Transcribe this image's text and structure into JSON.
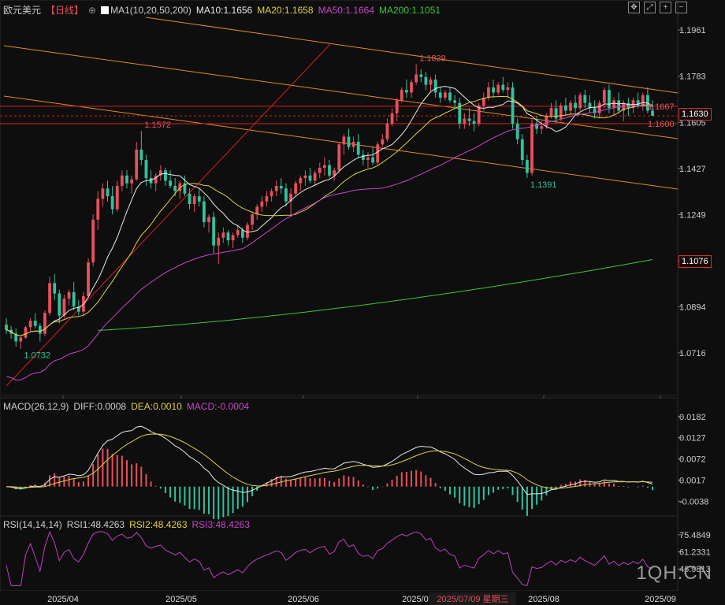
{
  "header": {
    "symbol": "欧元美元",
    "period": "【日线】",
    "ma_label": "MA1(10,20,50,200)",
    "ma10": "MA10:1.1656",
    "ma20": "MA20:1.1658",
    "ma50": "MA50:1.1664",
    "ma200": "MA200:1.1051"
  },
  "macd_header": {
    "label": "MACD(26,12,9)",
    "diff": "DIFF:0.0008",
    "dea": "DEA:0.0010",
    "macd": "MACD:-0.0004"
  },
  "rsi_header": {
    "label": "RSI(14,14,14)",
    "rsi1": "RSI1:48.4263",
    "rsi2": "RSI2:48.4263",
    "rsi3": "RSI3:48.4263"
  },
  "watermark": "1QH.CN",
  "crosshair_date": "2025/07/09 星期三",
  "current_price": "1.1630",
  "ma200_tag": "1.1076",
  "colors": {
    "up": "#e8505b",
    "down": "#2ec4a0",
    "ma10": "#e8e8e8",
    "ma20": "#e0d040",
    "ma50": "#cc44cc",
    "ma200": "#3cc43c",
    "trend": "#e08a20",
    "redline": "#d42020",
    "rsi": "#c040c0"
  },
  "chart_data": [
    {
      "type": "candlestick",
      "title": "欧元美元 日线",
      "x_ticks": [
        "2025/04",
        "2025/05",
        "2025/06",
        "2025/07",
        "2025/08",
        "2025/09"
      ],
      "y_ticks": [
        "1.1961",
        "1.1783",
        "1.1605",
        "1.1427",
        "1.1249",
        "1.1071",
        "1.0894",
        "1.0716"
      ],
      "ylim": [
        1.057,
        1.201
      ],
      "annotations": [
        {
          "label": "1.0732",
          "value": 1.0732
        },
        {
          "label": "1.1572",
          "value": 1.1572
        },
        {
          "label": "1.1829",
          "value": 1.1829
        },
        {
          "label": "1.1391",
          "value": 1.1391
        },
        {
          "label": "1.1667",
          "value": 1.1667
        },
        {
          "label": "1.1600",
          "value": 1.16
        }
      ],
      "ohlc": [
        [
          1.0825,
          1.085,
          1.079,
          1.0805
        ],
        [
          1.0805,
          1.082,
          1.077,
          1.079
        ],
        [
          1.079,
          1.081,
          1.074,
          1.076
        ],
        [
          1.076,
          1.078,
          1.0732,
          1.0775
        ],
        [
          1.0775,
          1.082,
          1.077,
          1.0815
        ],
        [
          1.0815,
          1.085,
          1.08,
          1.084
        ],
        [
          1.084,
          1.087,
          1.081,
          1.082
        ],
        [
          1.082,
          1.083,
          1.076,
          1.079
        ],
        [
          1.079,
          1.088,
          1.078,
          1.087
        ],
        [
          1.087,
          1.101,
          1.086,
          1.0985
        ],
        [
          1.0985,
          1.102,
          1.092,
          1.0945
        ],
        [
          1.0945,
          1.096,
          1.083,
          1.086
        ],
        [
          1.086,
          1.094,
          1.085,
          1.0925
        ],
        [
          1.0925,
          1.096,
          1.09,
          1.095
        ],
        [
          1.095,
          1.099,
          1.088,
          1.0895
        ],
        [
          1.0895,
          1.092,
          1.086,
          1.0875
        ],
        [
          1.0875,
          1.095,
          1.086,
          1.0935
        ],
        [
          1.0935,
          1.108,
          1.093,
          1.1065
        ],
        [
          1.1065,
          1.125,
          1.105,
          1.123
        ],
        [
          1.123,
          1.134,
          1.119,
          1.131
        ],
        [
          1.131,
          1.137,
          1.128,
          1.135
        ],
        [
          1.135,
          1.138,
          1.13,
          1.132
        ],
        [
          1.132,
          1.136,
          1.125,
          1.127
        ],
        [
          1.127,
          1.138,
          1.126,
          1.136
        ],
        [
          1.136,
          1.142,
          1.134,
          1.14
        ],
        [
          1.14,
          1.142,
          1.135,
          1.137
        ],
        [
          1.137,
          1.14,
          1.133,
          1.1385
        ],
        [
          1.1385,
          1.153,
          1.138,
          1.15
        ],
        [
          1.15,
          1.1572,
          1.144,
          1.146
        ],
        [
          1.146,
          1.148,
          1.136,
          1.139
        ],
        [
          1.139,
          1.142,
          1.135,
          1.137
        ],
        [
          1.137,
          1.141,
          1.134,
          1.14
        ],
        [
          1.14,
          1.144,
          1.138,
          1.142
        ],
        [
          1.142,
          1.143,
          1.136,
          1.138
        ],
        [
          1.138,
          1.142,
          1.135,
          1.136
        ],
        [
          1.136,
          1.139,
          1.132,
          1.134
        ],
        [
          1.134,
          1.138,
          1.131,
          1.137
        ],
        [
          1.137,
          1.14,
          1.132,
          1.133
        ],
        [
          1.133,
          1.135,
          1.127,
          1.129
        ],
        [
          1.129,
          1.133,
          1.126,
          1.132
        ],
        [
          1.132,
          1.135,
          1.128,
          1.13
        ],
        [
          1.13,
          1.132,
          1.12,
          1.122
        ],
        [
          1.122,
          1.125,
          1.118,
          1.124
        ],
        [
          1.124,
          1.126,
          1.11,
          1.113
        ],
        [
          1.113,
          1.118,
          1.106,
          1.116
        ],
        [
          1.116,
          1.12,
          1.114,
          1.118
        ],
        [
          1.118,
          1.119,
          1.113,
          1.115
        ],
        [
          1.115,
          1.118,
          1.112,
          1.117
        ],
        [
          1.117,
          1.121,
          1.116,
          1.119
        ],
        [
          1.119,
          1.12,
          1.114,
          1.116
        ],
        [
          1.116,
          1.122,
          1.115,
          1.121
        ],
        [
          1.121,
          1.126,
          1.119,
          1.125
        ],
        [
          1.125,
          1.129,
          1.123,
          1.128
        ],
        [
          1.128,
          1.132,
          1.126,
          1.13
        ],
        [
          1.13,
          1.134,
          1.128,
          1.132
        ],
        [
          1.132,
          1.135,
          1.13,
          1.134
        ],
        [
          1.134,
          1.138,
          1.132,
          1.136
        ],
        [
          1.136,
          1.139,
          1.133,
          1.135
        ],
        [
          1.135,
          1.137,
          1.128,
          1.13
        ],
        [
          1.13,
          1.135,
          1.124,
          1.133
        ],
        [
          1.133,
          1.138,
          1.132,
          1.137
        ],
        [
          1.137,
          1.14,
          1.134,
          1.139
        ],
        [
          1.139,
          1.142,
          1.136,
          1.14
        ],
        [
          1.14,
          1.143,
          1.137,
          1.138
        ],
        [
          1.138,
          1.142,
          1.136,
          1.141
        ],
        [
          1.141,
          1.145,
          1.139,
          1.143
        ],
        [
          1.143,
          1.147,
          1.14,
          1.144
        ],
        [
          1.144,
          1.146,
          1.139,
          1.14
        ],
        [
          1.14,
          1.143,
          1.138,
          1.142
        ],
        [
          1.142,
          1.153,
          1.141,
          1.152
        ],
        [
          1.152,
          1.156,
          1.148,
          1.155
        ],
        [
          1.155,
          1.158,
          1.15,
          1.151
        ],
        [
          1.151,
          1.155,
          1.149,
          1.153
        ],
        [
          1.153,
          1.156,
          1.147,
          1.148
        ],
        [
          1.148,
          1.15,
          1.144,
          1.146
        ],
        [
          1.146,
          1.149,
          1.143,
          1.147
        ],
        [
          1.147,
          1.151,
          1.144,
          1.145
        ],
        [
          1.145,
          1.153,
          1.144,
          1.152
        ],
        [
          1.152,
          1.156,
          1.151,
          1.154
        ],
        [
          1.154,
          1.162,
          1.153,
          1.16
        ],
        [
          1.16,
          1.166,
          1.159,
          1.164
        ],
        [
          1.164,
          1.17,
          1.161,
          1.169
        ],
        [
          1.169,
          1.174,
          1.168,
          1.173
        ],
        [
          1.173,
          1.177,
          1.17,
          1.172
        ],
        [
          1.172,
          1.177,
          1.17,
          1.176
        ],
        [
          1.176,
          1.1829,
          1.175,
          1.179
        ],
        [
          1.179,
          1.181,
          1.176,
          1.178
        ],
        [
          1.178,
          1.18,
          1.173,
          1.175
        ],
        [
          1.175,
          1.178,
          1.172,
          1.177
        ],
        [
          1.177,
          1.179,
          1.17,
          1.172
        ],
        [
          1.172,
          1.174,
          1.168,
          1.17
        ],
        [
          1.17,
          1.173,
          1.169,
          1.172
        ],
        [
          1.172,
          1.174,
          1.168,
          1.169
        ],
        [
          1.169,
          1.171,
          1.166,
          1.168
        ],
        [
          1.168,
          1.17,
          1.158,
          1.16
        ],
        [
          1.16,
          1.164,
          1.158,
          1.162
        ],
        [
          1.162,
          1.166,
          1.159,
          1.161
        ],
        [
          1.161,
          1.164,
          1.157,
          1.16
        ],
        [
          1.16,
          1.168,
          1.159,
          1.167
        ],
        [
          1.167,
          1.172,
          1.165,
          1.17
        ],
        [
          1.17,
          1.176,
          1.169,
          1.174
        ],
        [
          1.174,
          1.177,
          1.17,
          1.172
        ],
        [
          1.172,
          1.176,
          1.171,
          1.175
        ],
        [
          1.175,
          1.178,
          1.172,
          1.173
        ],
        [
          1.173,
          1.176,
          1.17,
          1.174
        ],
        [
          1.174,
          1.176,
          1.158,
          1.16
        ],
        [
          1.16,
          1.162,
          1.152,
          1.154
        ],
        [
          1.154,
          1.156,
          1.144,
          1.146
        ],
        [
          1.146,
          1.148,
          1.1391,
          1.141
        ],
        [
          1.141,
          1.162,
          1.14,
          1.16
        ],
        [
          1.16,
          1.163,
          1.156,
          1.158
        ],
        [
          1.158,
          1.161,
          1.156,
          1.159
        ],
        [
          1.159,
          1.164,
          1.158,
          1.163
        ],
        [
          1.163,
          1.168,
          1.162,
          1.166
        ],
        [
          1.166,
          1.169,
          1.16,
          1.162
        ],
        [
          1.162,
          1.168,
          1.161,
          1.167
        ],
        [
          1.167,
          1.17,
          1.163,
          1.165
        ],
        [
          1.165,
          1.169,
          1.163,
          1.168
        ],
        [
          1.168,
          1.171,
          1.164,
          1.166
        ],
        [
          1.166,
          1.172,
          1.165,
          1.171
        ],
        [
          1.171,
          1.173,
          1.166,
          1.168
        ],
        [
          1.168,
          1.171,
          1.164,
          1.166
        ],
        [
          1.166,
          1.169,
          1.162,
          1.164
        ],
        [
          1.164,
          1.169,
          1.162,
          1.168
        ],
        [
          1.168,
          1.174,
          1.166,
          1.173
        ],
        [
          1.173,
          1.175,
          1.164,
          1.166
        ],
        [
          1.166,
          1.17,
          1.163,
          1.169
        ],
        [
          1.169,
          1.172,
          1.164,
          1.165
        ],
        [
          1.165,
          1.169,
          1.161,
          1.168
        ],
        [
          1.168,
          1.17,
          1.163,
          1.166
        ],
        [
          1.166,
          1.17,
          1.164,
          1.169
        ],
        [
          1.169,
          1.172,
          1.166,
          1.167
        ],
        [
          1.167,
          1.172,
          1.165,
          1.171
        ],
        [
          1.171,
          1.174,
          1.164,
          1.165
        ],
        [
          1.165,
          1.169,
          1.163,
          1.163
        ]
      ]
    },
    {
      "type": "line",
      "title": "MACD(26,12,9)",
      "y_ticks": [
        "0.0182",
        "0.0127",
        "0.0072",
        "0.0017",
        "-0.0038"
      ],
      "ylim": [
        -0.0062,
        0.02
      ],
      "series": [
        {
          "name": "DIFF",
          "value": 0.0008
        },
        {
          "name": "DEA",
          "value": 0.001
        },
        {
          "name": "MACD",
          "value": -0.0004
        }
      ]
    },
    {
      "type": "line",
      "title": "RSI(14,14,14)",
      "y_ticks": [
        "75.4849",
        "61.2331",
        "46.9813"
      ],
      "ylim": [
        30,
        80
      ],
      "series": [
        {
          "name": "RSI1",
          "value": 48.4263
        },
        {
          "name": "RSI2",
          "value": 48.4263
        },
        {
          "name": "RSI3",
          "value": 48.4263
        }
      ]
    }
  ]
}
